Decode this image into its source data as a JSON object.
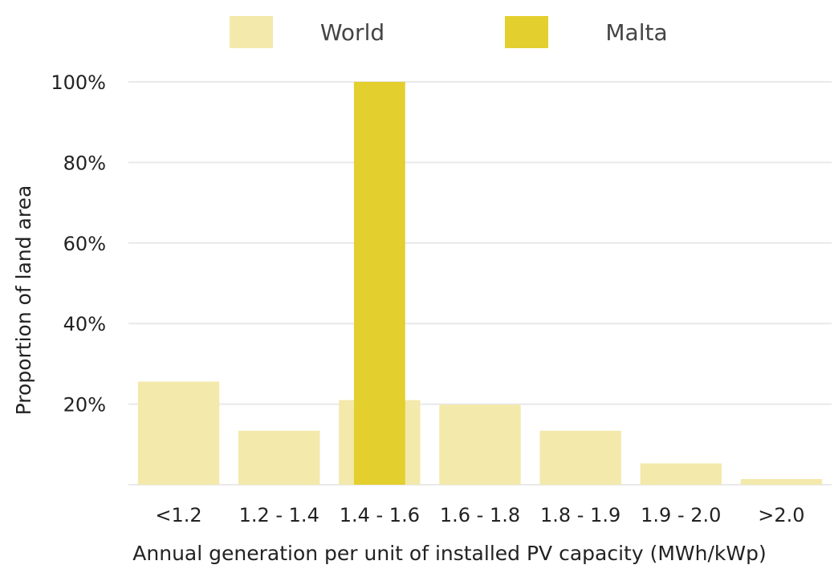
{
  "colors": {
    "world": "#f3e9ab",
    "malta": "#e3cf2e",
    "grid": "#e9e9e9",
    "background": "#ffffff"
  },
  "chart_data": {
    "type": "bar",
    "title": "",
    "xlabel": "Annual generation per unit of installed PV capacity (MWh/kWp)",
    "ylabel": "Proportion of land area",
    "ylim": [
      0,
      100
    ],
    "yticks": [
      20,
      40,
      60,
      80,
      100
    ],
    "ytick_labels": [
      "20%",
      "40%",
      "60%",
      "80%",
      "100%"
    ],
    "grid": true,
    "legend_position": "top-center",
    "categories": [
      "<1.2",
      "1.2 - 1.4",
      "1.4 - 1.6",
      "1.6 - 1.8",
      "1.8 - 1.9",
      "1.9 - 2.0",
      ">2.0"
    ],
    "series": [
      {
        "name": "World",
        "color": "#f3e9ab",
        "values": [
          25.6,
          13.4,
          21.0,
          19.9,
          13.4,
          5.3,
          1.4
        ]
      },
      {
        "name": "Malta",
        "color": "#e3cf2e",
        "values": [
          0,
          0,
          100,
          0,
          0,
          0,
          0
        ]
      }
    ]
  }
}
